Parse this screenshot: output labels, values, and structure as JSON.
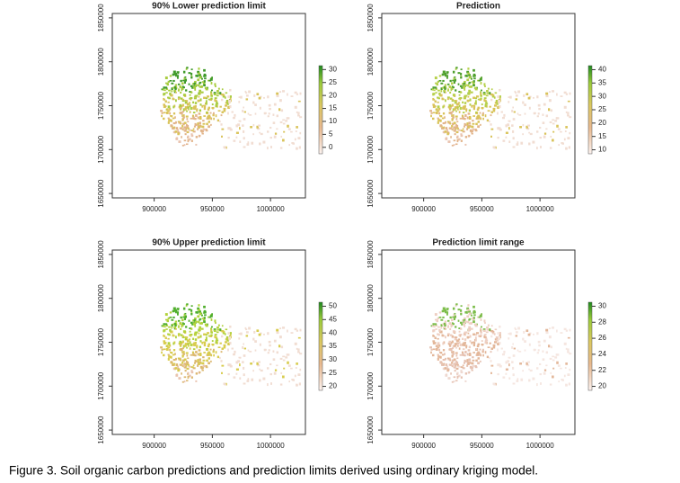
{
  "panels": [
    {
      "title": "90% Lower prediction limit",
      "xlim": [
        864000,
        1030000
      ],
      "xticks": [
        900000,
        950000,
        1000000
      ],
      "ylim": [
        1645000,
        1855000
      ],
      "yticks": [
        1650000,
        1700000,
        1750000,
        1800000,
        1850000
      ],
      "colorbar": {
        "lim": [
          -2.5,
          31.5
        ],
        "ticks": [
          0,
          5,
          10,
          15,
          20,
          25,
          30
        ]
      }
    },
    {
      "title": "Prediction",
      "xlim": [
        864000,
        1030000
      ],
      "xticks": [
        900000,
        950000,
        1000000
      ],
      "ylim": [
        1645000,
        1855000
      ],
      "yticks": [
        1650000,
        1700000,
        1750000,
        1800000,
        1850000
      ],
      "colorbar": {
        "lim": [
          8.5,
          41.5
        ],
        "ticks": [
          10,
          15,
          20,
          25,
          30,
          35,
          40
        ]
      }
    },
    {
      "title": "90% Upper prediction limit",
      "xlim": [
        864000,
        1030000
      ],
      "xticks": [
        900000,
        950000,
        1000000
      ],
      "ylim": [
        1645000,
        1855000
      ],
      "yticks": [
        1650000,
        1700000,
        1750000,
        1800000,
        1850000
      ],
      "colorbar": {
        "lim": [
          18.5,
          51.5
        ],
        "ticks": [
          20,
          25,
          30,
          35,
          40,
          45,
          50
        ]
      }
    },
    {
      "title": "Prediction limit range",
      "xlim": [
        864000,
        1030000
      ],
      "xticks": [
        900000,
        950000,
        1000000
      ],
      "ylim": [
        1645000,
        1855000
      ],
      "yticks": [
        1650000,
        1700000,
        1750000,
        1800000,
        1850000
      ],
      "colorbar": {
        "lim": [
          19.5,
          30.5
        ],
        "ticks": [
          20,
          22,
          24,
          26,
          28,
          30
        ]
      }
    }
  ],
  "caption": "Figure 3. Soil organic carbon predictions and prediction limits derived using ordinary kriging model."
}
